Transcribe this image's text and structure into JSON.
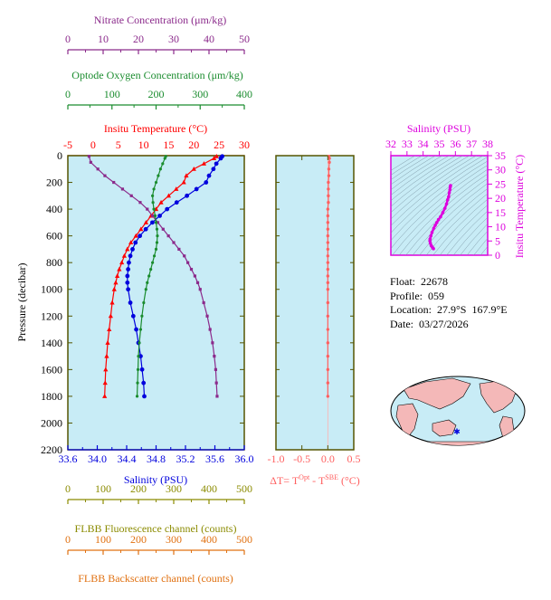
{
  "colors": {
    "nitrate": "#8b2a8b",
    "oxygen": "#1a8c2e",
    "temperature": "#ff0000",
    "salinity": "#0000dd",
    "delta_t": "#ff6060",
    "ts_salinity": "#dd00dd",
    "fluorescence": "#8b8b00",
    "backscatter": "#e07010",
    "plot_bg": "#c8ecf6",
    "frame": "#555500"
  },
  "info": {
    "float": "Float:  22678",
    "profile": "Profile:  059",
    "location": "Location:  27.9°S  167.9°E",
    "date": "Date:  03/27/2026"
  },
  "map_icon": "world-map-icon",
  "chart_data": [
    {
      "type": "line",
      "name": "main-profile-plot",
      "y_axis": {
        "label": "Pressure (decibar)",
        "range": [
          2200,
          0
        ],
        "ticks": [
          0,
          200,
          400,
          600,
          800,
          1000,
          1200,
          1400,
          1600,
          1800,
          2000,
          2200
        ],
        "ticklabels": [
          "0",
          "200",
          "400",
          "600",
          "800",
          "1000",
          "1200",
          "1400",
          "1600",
          "1800",
          "2000",
          "2200"
        ]
      },
      "axes": {
        "nitrate": {
          "label": "Nitrate Concentration (μm/kg)",
          "range": [
            0,
            50
          ],
          "ticks": [
            0,
            10,
            20,
            30,
            40,
            50
          ],
          "ticklabels": [
            "0",
            "10",
            "20",
            "30",
            "40",
            "50"
          ]
        },
        "oxygen": {
          "label": "Optode Oxygen Concentration (μm/kg)",
          "range": [
            0,
            400
          ],
          "ticks": [
            0,
            100,
            200,
            300,
            400
          ],
          "ticklabels": [
            "0",
            "100",
            "200",
            "300",
            "400"
          ]
        },
        "temperature": {
          "label": "Insitu Temperature (°C)",
          "range": [
            -5,
            30
          ],
          "ticks": [
            -5,
            0,
            5,
            10,
            15,
            20,
            25,
            30
          ],
          "ticklabels": [
            "-5",
            "0",
            "5",
            "10",
            "15",
            "20",
            "25",
            "30"
          ]
        },
        "salinity": {
          "label": "Salinity (PSU)",
          "range": [
            33.6,
            36.0
          ],
          "ticks": [
            33.6,
            34.0,
            34.4,
            34.8,
            35.2,
            35.6,
            36.0
          ],
          "ticklabels": [
            "33.6",
            "34.0",
            "34.4",
            "34.8",
            "35.2",
            "35.6",
            "36.0"
          ]
        },
        "fluorescence": {
          "label": "FLBB Fluorescence channel (counts)",
          "range": [
            0,
            500
          ],
          "ticks": [
            0,
            100,
            200,
            300,
            400,
            500
          ],
          "ticklabels": [
            "0",
            "100",
            "200",
            "300",
            "400",
            "500"
          ]
        },
        "backscatter": {
          "label": "FLBB Backscatter channel (counts)",
          "range": [
            0,
            500
          ],
          "ticks": [
            0,
            100,
            200,
            300,
            400,
            500
          ],
          "ticklabels": [
            "0",
            "100",
            "200",
            "300",
            "400",
            "500"
          ]
        }
      },
      "series": [
        {
          "key": "temperature",
          "marker": "triangle",
          "points": [
            [
              24.5,
              5
            ],
            [
              24.0,
              20
            ],
            [
              22.0,
              60
            ],
            [
              20.0,
              100
            ],
            [
              18.5,
              150
            ],
            [
              18.0,
              200
            ],
            [
              16.5,
              250
            ],
            [
              15.0,
              300
            ],
            [
              13.5,
              350
            ],
            [
              12.5,
              400
            ],
            [
              11.5,
              450
            ],
            [
              10.5,
              500
            ],
            [
              9.5,
              550
            ],
            [
              8.5,
              600
            ],
            [
              7.5,
              650
            ],
            [
              6.8,
              700
            ],
            [
              6.2,
              750
            ],
            [
              5.7,
              800
            ],
            [
              5.2,
              850
            ],
            [
              4.8,
              900
            ],
            [
              4.5,
              950
            ],
            [
              4.2,
              1000
            ],
            [
              3.8,
              1100
            ],
            [
              3.5,
              1200
            ],
            [
              3.2,
              1300
            ],
            [
              2.9,
              1400
            ],
            [
              2.7,
              1500
            ],
            [
              2.5,
              1600
            ],
            [
              2.4,
              1700
            ],
            [
              2.3,
              1800
            ]
          ]
        },
        {
          "key": "salinity",
          "marker": "circle",
          "points": [
            [
              35.7,
              5
            ],
            [
              35.68,
              20
            ],
            [
              35.62,
              60
            ],
            [
              35.58,
              100
            ],
            [
              35.52,
              150
            ],
            [
              35.48,
              200
            ],
            [
              35.35,
              250
            ],
            [
              35.22,
              300
            ],
            [
              35.08,
              350
            ],
            [
              34.95,
              400
            ],
            [
              34.85,
              450
            ],
            [
              34.75,
              500
            ],
            [
              34.66,
              550
            ],
            [
              34.58,
              600
            ],
            [
              34.52,
              650
            ],
            [
              34.48,
              700
            ],
            [
              34.45,
              750
            ],
            [
              34.43,
              800
            ],
            [
              34.42,
              850
            ],
            [
              34.41,
              900
            ],
            [
              34.41,
              950
            ],
            [
              34.42,
              1000
            ],
            [
              34.45,
              1100
            ],
            [
              34.49,
              1200
            ],
            [
              34.53,
              1300
            ],
            [
              34.56,
              1400
            ],
            [
              34.59,
              1500
            ],
            [
              34.61,
              1600
            ],
            [
              34.63,
              1700
            ],
            [
              34.64,
              1800
            ]
          ]
        },
        {
          "key": "nitrate",
          "marker": "square",
          "points": [
            [
              6.0,
              5
            ],
            [
              6.5,
              50
            ],
            [
              8.5,
              100
            ],
            [
              10.5,
              150
            ],
            [
              13.0,
              200
            ],
            [
              15.5,
              250
            ],
            [
              18.0,
              300
            ],
            [
              20.5,
              350
            ],
            [
              22.5,
              400
            ],
            [
              24.0,
              450
            ],
            [
              25.5,
              500
            ],
            [
              27.0,
              550
            ],
            [
              28.5,
              600
            ],
            [
              30.0,
              650
            ],
            [
              31.5,
              700
            ],
            [
              33.0,
              750
            ],
            [
              34.0,
              800
            ],
            [
              35.0,
              850
            ],
            [
              36.0,
              900
            ],
            [
              36.8,
              950
            ],
            [
              37.5,
              1000
            ],
            [
              38.5,
              1100
            ],
            [
              39.5,
              1200
            ],
            [
              40.3,
              1300
            ],
            [
              41.0,
              1400
            ],
            [
              41.5,
              1500
            ],
            [
              41.9,
              1600
            ],
            [
              42.1,
              1700
            ],
            [
              42.3,
              1800
            ]
          ]
        },
        {
          "key": "oxygen",
          "marker": "circle",
          "points": [
            [
              222,
              5
            ],
            [
              220,
              20
            ],
            [
              215,
              60
            ],
            [
              210,
              100
            ],
            [
              205,
              150
            ],
            [
              200,
              200
            ],
            [
              195,
              250
            ],
            [
              192,
              300
            ],
            [
              193,
              350
            ],
            [
              195,
              400
            ],
            [
              198,
              450
            ],
            [
              200,
              500
            ],
            [
              202,
              550
            ],
            [
              203,
              600
            ],
            [
              202,
              650
            ],
            [
              200,
              700
            ],
            [
              196,
              750
            ],
            [
              192,
              800
            ],
            [
              188,
              850
            ],
            [
              184,
              900
            ],
            [
              180,
              950
            ],
            [
              177,
              1000
            ],
            [
              172,
              1100
            ],
            [
              168,
              1200
            ],
            [
              165,
              1300
            ],
            [
              162,
              1400
            ],
            [
              160,
              1500
            ],
            [
              159,
              1600
            ],
            [
              158,
              1700
            ],
            [
              157,
              1800
            ]
          ]
        }
      ]
    },
    {
      "type": "line",
      "name": "delta-t-plot",
      "x_axis": {
        "label": "ΔT= T",
        "label_sup1": "Opt",
        "label_mid": " - T",
        "label_sup2": "SBE",
        "label_unit": " (°C)",
        "range": [
          -1.0,
          0.5
        ],
        "ticks": [
          -1.0,
          -0.5,
          0.0,
          0.5
        ],
        "ticklabels": [
          "-1.0",
          "-0.5",
          "0.0",
          "0.5"
        ]
      },
      "y_range": [
        2200,
        0
      ],
      "series": [
        {
          "key": "delta_t",
          "points": [
            [
              0.02,
              5
            ],
            [
              0.03,
              20
            ],
            [
              0.03,
              50
            ],
            [
              0.02,
              100
            ],
            [
              0.02,
              150
            ],
            [
              0.01,
              200
            ],
            [
              0.01,
              250
            ],
            [
              0.01,
              300
            ],
            [
              0.01,
              350
            ],
            [
              0.0,
              400
            ],
            [
              0.0,
              450
            ],
            [
              0.0,
              500
            ],
            [
              0.0,
              550
            ],
            [
              0.0,
              600
            ],
            [
              0.0,
              650
            ],
            [
              0.0,
              700
            ],
            [
              0.0,
              750
            ],
            [
              0.0,
              800
            ],
            [
              0.0,
              850
            ],
            [
              0.0,
              900
            ],
            [
              0.0,
              950
            ],
            [
              0.0,
              1000
            ],
            [
              0.0,
              1100
            ],
            [
              0.0,
              1200
            ],
            [
              0.0,
              1300
            ],
            [
              0.0,
              1400
            ],
            [
              0.0,
              1500
            ],
            [
              0.0,
              1600
            ],
            [
              0.0,
              1700
            ],
            [
              0.0,
              1800
            ]
          ]
        }
      ]
    },
    {
      "type": "scatter",
      "name": "ts-diagram",
      "x_axis": {
        "label": "Salinity (PSU)",
        "range": [
          32,
          38
        ],
        "ticks": [
          32,
          33,
          34,
          35,
          36,
          37,
          38
        ],
        "ticklabels": [
          "32",
          "33",
          "34",
          "35",
          "36",
          "37",
          "38"
        ]
      },
      "y_axis": {
        "label": "Insitu Temperature (°C)",
        "range": [
          0,
          35
        ],
        "ticks": [
          0,
          5,
          10,
          15,
          20,
          25,
          30,
          35
        ],
        "ticklabels": [
          "0",
          "5",
          "10",
          "15",
          "20",
          "25",
          "30",
          "35"
        ]
      },
      "series": [
        {
          "key": "ts",
          "points": [
            [
              34.64,
              2.3
            ],
            [
              34.61,
              2.5
            ],
            [
              34.56,
              2.9
            ],
            [
              34.5,
              3.4
            ],
            [
              34.45,
              4.2
            ],
            [
              34.42,
              5.0
            ],
            [
              34.43,
              5.7
            ],
            [
              34.48,
              6.8
            ],
            [
              34.55,
              8.0
            ],
            [
              34.66,
              9.5
            ],
            [
              34.75,
              10.5
            ],
            [
              34.85,
              11.5
            ],
            [
              34.95,
              12.5
            ],
            [
              35.08,
              13.5
            ],
            [
              35.22,
              15.0
            ],
            [
              35.35,
              16.5
            ],
            [
              35.45,
              18.0
            ],
            [
              35.52,
              19.5
            ],
            [
              35.58,
              20.5
            ],
            [
              35.62,
              22.0
            ],
            [
              35.66,
              23.0
            ],
            [
              35.68,
              24.0
            ],
            [
              35.7,
              24.5
            ]
          ]
        }
      ]
    }
  ]
}
